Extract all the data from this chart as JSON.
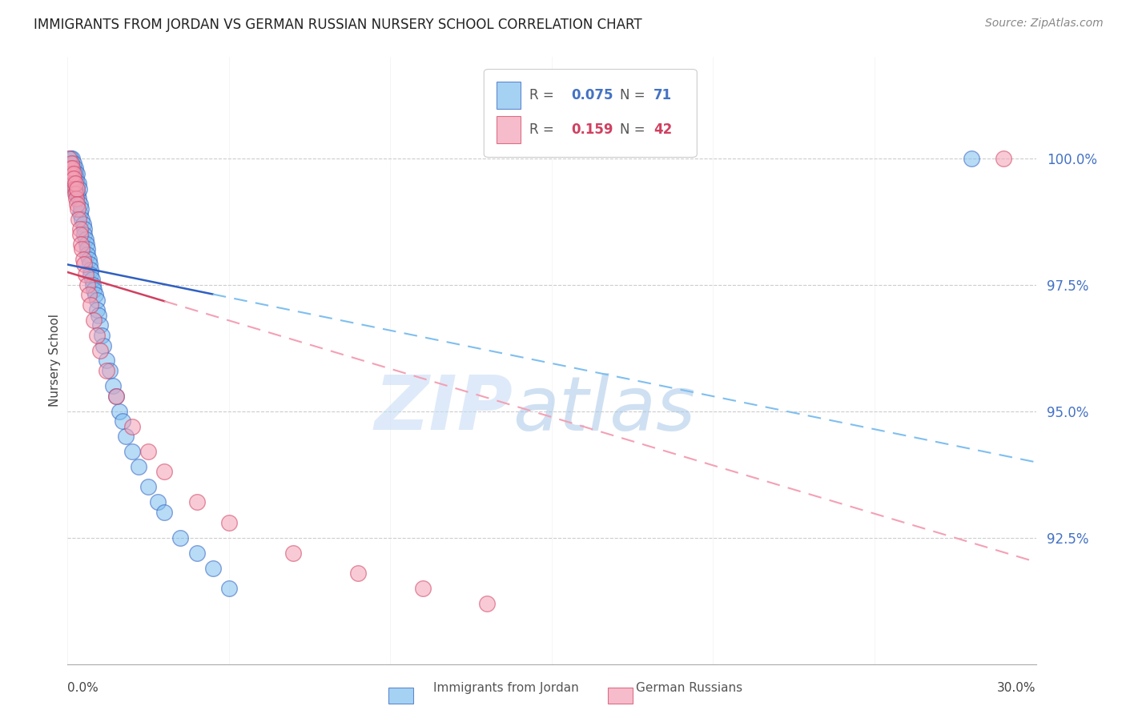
{
  "title": "IMMIGRANTS FROM JORDAN VS GERMAN RUSSIAN NURSERY SCHOOL CORRELATION CHART",
  "source": "Source: ZipAtlas.com",
  "ylabel": "Nursery School",
  "xlim": [
    0.0,
    30.0
  ],
  "ylim": [
    90.0,
    102.0
  ],
  "blue_color": "#7fbfef",
  "pink_color": "#f4a0b5",
  "trend_blue_solid": "#3060c0",
  "trend_pink_solid": "#d04060",
  "trend_blue_dash": "#7fbfef",
  "trend_pink_dash": "#f4a0b5",
  "watermark_zip": "#c8ddf0",
  "watermark_atlas": "#a8c8e8",
  "ytick_color": "#4472c4",
  "jordan_x": [
    0.05,
    0.08,
    0.1,
    0.1,
    0.12,
    0.13,
    0.14,
    0.15,
    0.15,
    0.16,
    0.17,
    0.18,
    0.19,
    0.2,
    0.2,
    0.21,
    0.22,
    0.23,
    0.24,
    0.25,
    0.26,
    0.27,
    0.28,
    0.3,
    0.3,
    0.32,
    0.33,
    0.35,
    0.36,
    0.38,
    0.4,
    0.42,
    0.45,
    0.48,
    0.5,
    0.52,
    0.55,
    0.58,
    0.6,
    0.62,
    0.65,
    0.68,
    0.7,
    0.72,
    0.75,
    0.78,
    0.8,
    0.85,
    0.9,
    0.92,
    0.95,
    1.0,
    1.05,
    1.1,
    1.2,
    1.3,
    1.4,
    1.5,
    1.6,
    1.7,
    1.8,
    2.0,
    2.2,
    2.5,
    2.8,
    3.0,
    3.5,
    4.0,
    4.5,
    5.0,
    28.0
  ],
  "jordan_y": [
    99.8,
    100.0,
    99.7,
    100.0,
    99.9,
    99.8,
    99.6,
    100.0,
    99.5,
    99.8,
    99.7,
    99.6,
    99.8,
    99.9,
    99.5,
    99.7,
    99.6,
    99.8,
    99.4,
    99.7,
    99.6,
    99.3,
    99.5,
    99.4,
    99.7,
    99.3,
    99.5,
    99.2,
    99.4,
    99.1,
    98.9,
    99.0,
    98.8,
    98.7,
    98.6,
    98.5,
    98.4,
    98.3,
    98.2,
    98.1,
    98.0,
    97.9,
    97.8,
    97.7,
    97.6,
    97.5,
    97.4,
    97.3,
    97.2,
    97.0,
    96.9,
    96.7,
    96.5,
    96.3,
    96.0,
    95.8,
    95.5,
    95.3,
    95.0,
    94.8,
    94.5,
    94.2,
    93.9,
    93.5,
    93.2,
    93.0,
    92.5,
    92.2,
    91.9,
    91.5,
    100.0
  ],
  "german_x": [
    0.05,
    0.08,
    0.1,
    0.12,
    0.14,
    0.15,
    0.17,
    0.18,
    0.2,
    0.22,
    0.24,
    0.25,
    0.27,
    0.28,
    0.3,
    0.32,
    0.35,
    0.38,
    0.4,
    0.42,
    0.45,
    0.48,
    0.5,
    0.55,
    0.6,
    0.65,
    0.7,
    0.8,
    0.9,
    1.0,
    1.2,
    1.5,
    2.0,
    2.5,
    3.0,
    4.0,
    5.0,
    7.0,
    9.0,
    11.0,
    13.0,
    29.0
  ],
  "german_y": [
    100.0,
    99.8,
    99.7,
    99.9,
    99.6,
    99.8,
    99.5,
    99.7,
    99.6,
    99.4,
    99.3,
    99.5,
    99.2,
    99.4,
    99.1,
    99.0,
    98.8,
    98.6,
    98.5,
    98.3,
    98.2,
    98.0,
    97.9,
    97.7,
    97.5,
    97.3,
    97.1,
    96.8,
    96.5,
    96.2,
    95.8,
    95.3,
    94.7,
    94.2,
    93.8,
    93.2,
    92.8,
    92.2,
    91.8,
    91.5,
    91.2,
    100.0
  ],
  "solid_blue_end": 4.5,
  "solid_pink_end": 3.0,
  "ytick_vals": [
    92.5,
    95.0,
    97.5,
    100.0
  ]
}
